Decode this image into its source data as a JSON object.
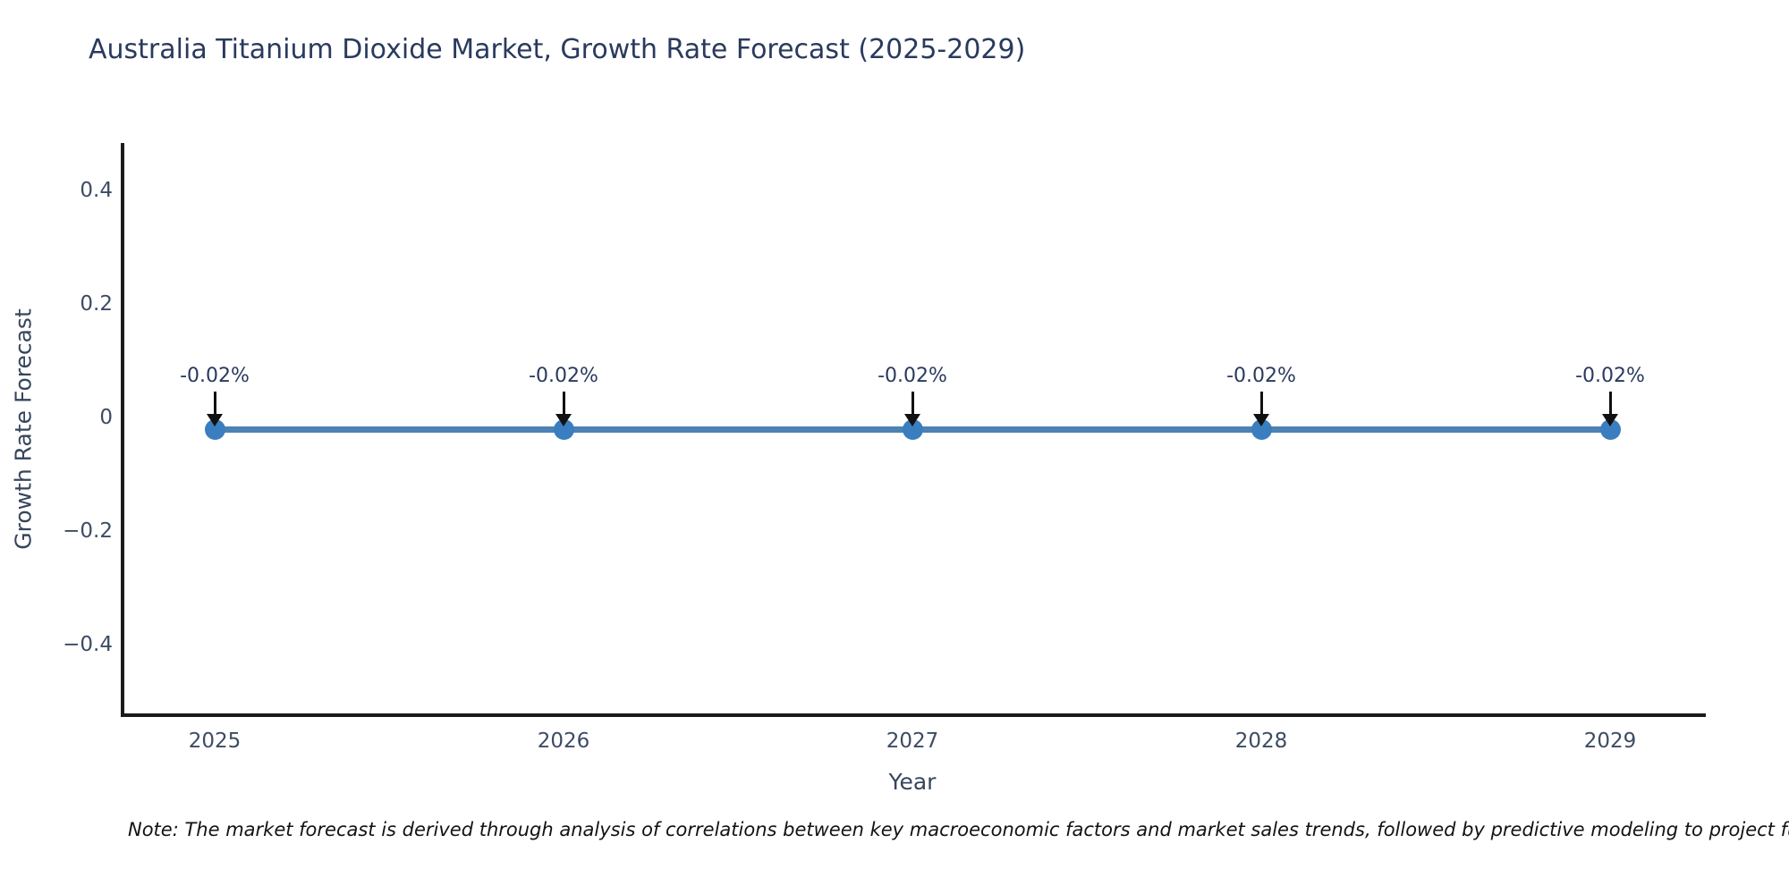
{
  "chart_data": {
    "type": "line",
    "title": "Australia Titanium Dioxide Market, Growth Rate Forecast (2025-2029)",
    "xlabel": "Year",
    "ylabel": "Growth Rate Forecast",
    "categories": [
      "2025",
      "2026",
      "2027",
      "2028",
      "2029"
    ],
    "series": [
      {
        "name": "Growth Rate Forecast",
        "values": [
          -0.02,
          -0.02,
          -0.02,
          -0.02,
          -0.02
        ]
      }
    ],
    "point_labels": [
      "-0.02%",
      "-0.02%",
      "-0.02%",
      "-0.02%",
      "-0.02%"
    ],
    "yticks": [
      0.4,
      0.2,
      0,
      -0.2,
      -0.4
    ],
    "ytick_labels": [
      "0.4",
      "0.2",
      "0",
      "−0.2",
      "−0.4"
    ],
    "ylim": [
      -0.52,
      0.48
    ],
    "grid": false,
    "legend_position": "none",
    "colors": {
      "line": "#4d82b4",
      "marker": "#3a7ebf",
      "axis": "#1b1b1d",
      "title_text": "#2a3a5e",
      "tick_text": "#3d4c63",
      "annotation_arrow": "#111111"
    }
  },
  "note": {
    "text": "Note: The market forecast is derived through analysis of correlations between key macroeconomic factors and market sales trends, followed by predictive modeling to project future sal"
  }
}
